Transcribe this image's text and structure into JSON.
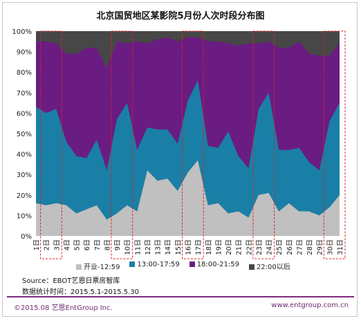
{
  "chart_data": {
    "type": "area",
    "title": "北京国贸地区某影院5月份人次时段分布图",
    "categories": [
      "1日",
      "2日",
      "3日",
      "4日",
      "5日",
      "6日",
      "7日",
      "8日",
      "9日",
      "10日",
      "11日",
      "12日",
      "13日",
      "14日",
      "15日",
      "16日",
      "17日",
      "18日",
      "19日",
      "20日",
      "21日",
      "22日",
      "23日",
      "24日",
      "25日",
      "26日",
      "27日",
      "28日",
      "29日",
      "30日",
      "31日"
    ],
    "ylim": [
      0,
      100
    ],
    "yticks": [
      "0%",
      "10%",
      "20%",
      "30%",
      "40%",
      "50%",
      "60%",
      "70%",
      "80%",
      "90%",
      "100%"
    ],
    "stacked": true,
    "series": [
      {
        "name": "开业-12:59",
        "color": "#c0c0c0",
        "values": [
          16,
          15,
          16,
          15,
          11,
          13,
          15,
          8,
          11,
          15,
          12,
          32,
          27,
          28,
          22,
          31,
          37,
          15,
          16,
          11,
          12,
          9,
          20,
          21,
          12,
          16,
          12,
          12,
          10,
          14,
          20
        ]
      },
      {
        "name": "13:00-17:59",
        "color": "#1a7fa6",
        "values": [
          47,
          45,
          46,
          31,
          28,
          25,
          32,
          24,
          46,
          50,
          30,
          21,
          25,
          24,
          23,
          35,
          39,
          29,
          27,
          40,
          27,
          24,
          42,
          49,
          30,
          26,
          31,
          24,
          22,
          42,
          45
        ]
      },
      {
        "name": "18:00-21:59",
        "color": "#6a1c82",
        "values": [
          32,
          35,
          32,
          43,
          50,
          54,
          45,
          50,
          38,
          29,
          53,
          41,
          44,
          45,
          50,
          31,
          21,
          51,
          52,
          43,
          54,
          61,
          32,
          25,
          50,
          50,
          52,
          53,
          56,
          32,
          29
        ]
      },
      {
        "name": "22:00以后",
        "color": "#474747",
        "values": [
          5,
          5,
          6,
          11,
          11,
          8,
          8,
          18,
          5,
          6,
          5,
          6,
          4,
          3,
          5,
          3,
          3,
          5,
          5,
          6,
          7,
          6,
          6,
          5,
          8,
          8,
          5,
          11,
          12,
          12,
          6
        ]
      }
    ],
    "highlight_categories": [
      "2日",
      "3日",
      "9日",
      "10日",
      "16日",
      "17日",
      "23日",
      "24日",
      "30日",
      "31日"
    ],
    "source": "Source：EBOT艺恩日票房智库",
    "period": "数据统计时间：2015.5.1-2015.5.30"
  },
  "footer": {
    "copyright": "©2015.08  艺恩EntGroup Inc.",
    "url": "www.entgroup.com.cn"
  }
}
